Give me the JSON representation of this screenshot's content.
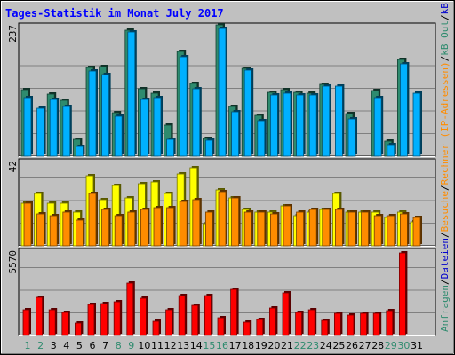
{
  "chart_data": {
    "type": "bar",
    "title": "Tages-Statistik im Monat July 2017",
    "days": [
      "1",
      "2",
      "3",
      "4",
      "5",
      "6",
      "7",
      "8",
      "9",
      "10",
      "11",
      "12",
      "13",
      "14",
      "15",
      "16",
      "17",
      "18",
      "19",
      "20",
      "21",
      "22",
      "23",
      "24",
      "25",
      "26",
      "27",
      "28",
      "29",
      "30",
      "31"
    ],
    "weekend_days": [
      "1",
      "2",
      "8",
      "9",
      "15",
      "16",
      "22",
      "23",
      "29",
      "30"
    ],
    "panels": [
      {
        "id": "top",
        "max_label": "237",
        "ymax": 237,
        "series": [
          {
            "name": "Anfragen",
            "color": "#2e8b6e",
            "values": [
              120,
              0,
              112,
              101,
              31,
              160,
              161,
              79,
              227,
              121,
              114,
              56,
              189,
              131,
              32,
              237,
              89,
              159,
              74,
              116,
              120,
              116,
              114,
              130,
              0,
              77,
              0,
              119,
              28,
              174,
              0
            ]
          },
          {
            "name": "Dateien",
            "color": "#00b0ff",
            "values": [
              105,
              86,
              103,
              90,
              17,
              154,
              148,
              72,
              224,
              103,
              105,
              31,
              179,
              122,
              29,
              231,
              80,
              156,
              64,
              111,
              113,
              110,
              111,
              127,
              127,
              68,
              0,
              106,
              21,
              166,
              114
            ]
          }
        ]
      },
      {
        "id": "middle",
        "max_label": "42",
        "ymax": 42,
        "series": [
          {
            "name": "Rechner (IP-Adressen)",
            "color": "#ffff00",
            "values": [
              21,
              26,
              21,
              21,
              17,
              35,
              23,
              30,
              24,
              31,
              32,
              26,
              36,
              39,
              11,
              28,
              24,
              18,
              17,
              17,
              20,
              15,
              17,
              18,
              26,
              17,
              17,
              17,
              14,
              17,
              12
            ]
          },
          {
            "name": "Besuche",
            "color": "#ff8c00",
            "values": [
              21,
              16,
              15,
              17,
              13,
              26,
              18,
              15,
              17,
              18,
              19,
              19,
              22,
              23,
              17,
              27,
              24,
              17,
              17,
              16,
              20,
              17,
              18,
              18,
              18,
              17,
              17,
              15,
              15,
              16,
              14
            ]
          }
        ]
      },
      {
        "id": "bottom",
        "max_label": "5570",
        "ymax": 5570,
        "series": [
          {
            "name": "kB In",
            "color": "#0000ff",
            "values": [
              0,
              0,
              0,
              0,
              0,
              0,
              0,
              0,
              0,
              0,
              0,
              0,
              0,
              0,
              0,
              0,
              0,
              0,
              0,
              0,
              0,
              0,
              0,
              0,
              0,
              0,
              0,
              0,
              0,
              0,
              0
            ]
          },
          {
            "name": "kB Out",
            "color": "#2e8b6e",
            "values": [
              0,
              0,
              0,
              0,
              0,
              0,
              0,
              0,
              0,
              0,
              0,
              0,
              0,
              0,
              0,
              0,
              0,
              0,
              0,
              0,
              0,
              0,
              0,
              0,
              0,
              0,
              0,
              0,
              0,
              0,
              0
            ]
          },
          {
            "name": "kB F",
            "color": "#ff0000",
            "values": [
              1720,
              2520,
              1710,
              1500,
              800,
              2080,
              2110,
              2240,
              3480,
              2440,
              940,
              1700,
              2630,
              2010,
              2650,
              1180,
              3030,
              880,
              1030,
              1800,
              2830,
              1530,
              1720,
              990,
              1470,
              1330,
              1450,
              1450,
              1660,
              5450,
              0
            ]
          }
        ]
      }
    ],
    "legend": [
      {
        "text": "Anfragen",
        "color": "#2e8b6e"
      },
      {
        "text": "/",
        "color": "#000000"
      },
      {
        "text": "Dateien",
        "color": "#0000cc"
      },
      {
        "text": "/",
        "color": "#000000"
      },
      {
        "text": "Besuche",
        "color": "#ff8c00"
      },
      {
        "text": "/",
        "color": "#000000"
      },
      {
        "text": "Rechner (IP-Adressen)",
        "color": "#ff8c00"
      },
      {
        "text": "/",
        "color": "#000000"
      },
      {
        "text": "kB Out",
        "color": "#2e8b6e"
      },
      {
        "text": "/",
        "color": "#000000"
      },
      {
        "text": "kB In",
        "color": "#0000cc"
      },
      {
        "text": "/",
        "color": "#000000"
      },
      {
        "text": "kB F",
        "color": "#ff0000"
      }
    ],
    "grid": true,
    "colors": {
      "background": "#c0c0c0",
      "title": "#0000ff",
      "weekday_label": "#000000",
      "weekend_label": "#2e8b6e"
    }
  }
}
